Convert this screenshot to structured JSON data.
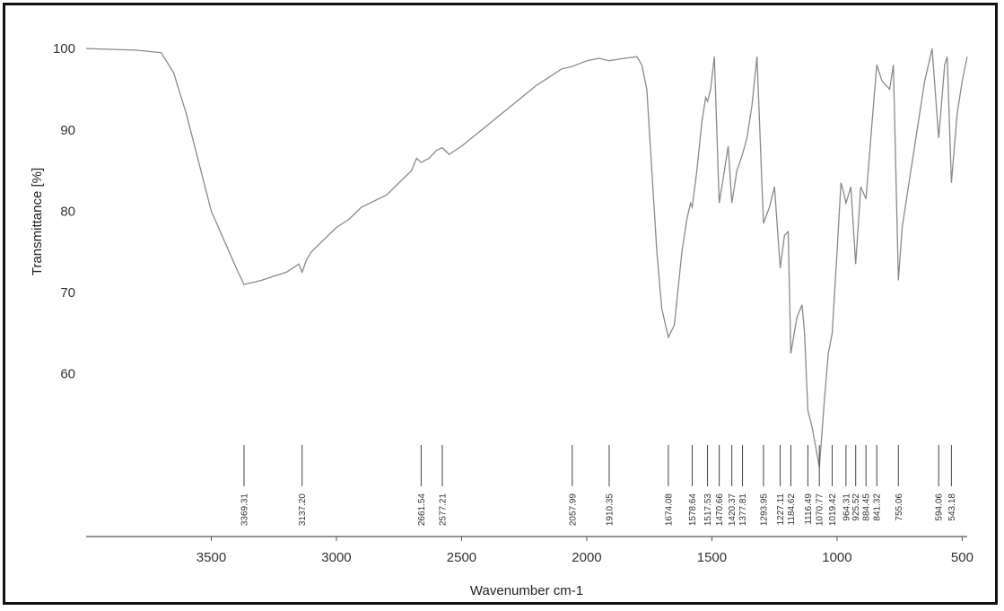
{
  "chart_data": {
    "type": "line",
    "title": "",
    "xlabel": "Wavenumber cm-1",
    "ylabel": "Transmittance [%]",
    "xlim": [
      4000,
      480
    ],
    "ylim": [
      40,
      102
    ],
    "x_ticks": [
      3500,
      3000,
      2500,
      2000,
      1500,
      1000,
      500
    ],
    "y_ticks": [
      100,
      90,
      80,
      70,
      60
    ],
    "grid": false,
    "line_color": "#8a8a8a",
    "series": [
      {
        "x": [
          4000,
          3800,
          3700,
          3650,
          3600,
          3500,
          3400,
          3369.31,
          3300,
          3250,
          3200,
          3150,
          3137.2,
          3120,
          3100,
          3000,
          2950,
          2900,
          2800,
          2700,
          2680,
          2661.54,
          2630,
          2600,
          2577.21,
          2550,
          2500,
          2400,
          2300,
          2200,
          2100,
          2057.99,
          2000,
          1950,
          1910.35,
          1850,
          1800,
          1780,
          1760,
          1740,
          1720,
          1700,
          1674.08,
          1650,
          1620,
          1600,
          1585,
          1578.64,
          1560,
          1540,
          1525,
          1517.53,
          1505,
          1490,
          1470.66,
          1450,
          1435,
          1420.37,
          1400,
          1377.81,
          1360,
          1340,
          1320,
          1293.95,
          1270,
          1250,
          1227.11,
          1210,
          1195,
          1184.62,
          1160,
          1140,
          1130,
          1116.49,
          1100,
          1085,
          1070.77,
          1050,
          1035,
          1019.42,
          1000,
          984.31,
          975,
          964.31,
          945,
          925.52,
          905,
          884.45,
          860,
          841.32,
          820,
          790,
          775,
          755.06,
          740,
          700,
          650,
          620,
          594.06,
          570,
          560,
          543.18,
          520,
          500,
          480
        ],
        "y": [
          100,
          99.8,
          99.5,
          97,
          92,
          80,
          73,
          71,
          71.5,
          72,
          72.5,
          73.5,
          72.5,
          74,
          75,
          78,
          79,
          80.5,
          82,
          85,
          86.5,
          86,
          86.5,
          87.5,
          87.8,
          87,
          88,
          90.5,
          93,
          95.5,
          97.5,
          97.8,
          98.5,
          98.8,
          98.5,
          98.8,
          99,
          98,
          95,
          85,
          75,
          68,
          64.5,
          66,
          75,
          79,
          81,
          80.5,
          85,
          91,
          94,
          93.5,
          95,
          99,
          81,
          85,
          88,
          81,
          85,
          87,
          89,
          93,
          99,
          78.5,
          80.5,
          83,
          73,
          77,
          77.5,
          62.5,
          67,
          68.5,
          65,
          55.5,
          53.5,
          51,
          48.5,
          57,
          62.5,
          65,
          75,
          83.5,
          82.5,
          81,
          83,
          73.5,
          83,
          81.5,
          91,
          98,
          96,
          95,
          98,
          71.5,
          78,
          86,
          96,
          100,
          89,
          98,
          99,
          83.5,
          92,
          96,
          99
        ]
      }
    ],
    "peak_labels": [
      "3369.31",
      "3137.20",
      "2661.54",
      "2577.21",
      "2057.99",
      "1910.35",
      "1674.08",
      "1578.64",
      "1517.53",
      "1470.66",
      "1420.37",
      "1377.81",
      "1293.95",
      "1227.11",
      "1184.62",
      "1116.49",
      "1070.77",
      "1019.42",
      "964.31",
      "925.52",
      "884.45",
      "841.32",
      "755.06",
      "594.06",
      "543.18"
    ]
  }
}
